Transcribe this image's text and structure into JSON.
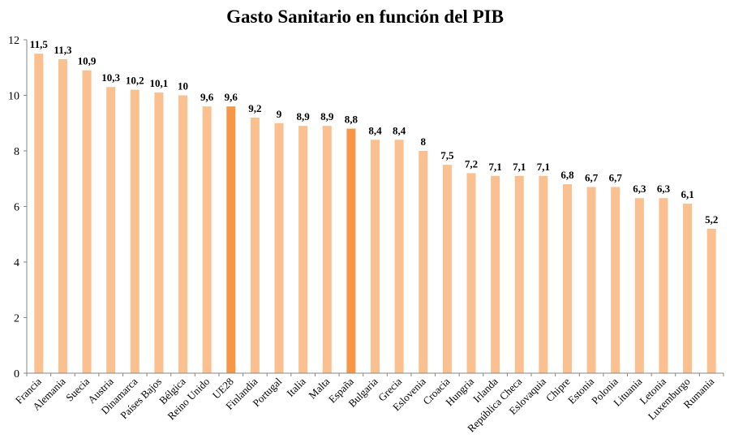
{
  "chart_data": {
    "type": "bar",
    "title": "Gasto Sanitario en función del PIB",
    "xlabel": "",
    "ylabel": "",
    "ylim": [
      0,
      12
    ],
    "yticks": [
      0,
      2,
      4,
      6,
      8,
      10,
      12
    ],
    "grid": false,
    "categories": [
      "Francia",
      "Alemania",
      "Suecia",
      "Austria",
      "Dinamarca",
      "Países Bajos",
      "Bélgica",
      "Reino Unido",
      "UE28",
      "Finlandia",
      "Portugal",
      "Italia",
      "Malta",
      "España",
      "Bulgaria",
      "Grecia",
      "Eslovenia",
      "Croacia",
      "Hungria",
      "Irlanda",
      "República Checa",
      "Eslovaquia",
      "Chipre",
      "Estonia",
      "Polonia",
      "Lituania",
      "Letonia",
      "Luxemburgo",
      "Rumania"
    ],
    "values": [
      11.5,
      11.3,
      10.9,
      10.3,
      10.2,
      10.1,
      10,
      9.6,
      9.6,
      9.2,
      9,
      8.9,
      8.9,
      8.8,
      8.4,
      8.4,
      8,
      7.5,
      7.2,
      7.1,
      7.1,
      7.1,
      6.8,
      6.7,
      6.7,
      6.3,
      6.3,
      6.1,
      5.2
    ],
    "data_labels": [
      "11,5",
      "11,3",
      "10,9",
      "10,3",
      "10,2",
      "10,1",
      "10",
      "9,6",
      "9,6",
      "9,2",
      "9",
      "8,9",
      "8,9",
      "8,8",
      "8,4",
      "8,4",
      "8",
      "7,5",
      "7,2",
      "7,1",
      "7,1",
      "7,1",
      "6,8",
      "6,7",
      "6,7",
      "6,3",
      "6,3",
      "6,1",
      "5,2"
    ],
    "highlighted": [
      "UE28",
      "España"
    ],
    "colors": {
      "bar": "#FAC090",
      "highlight": "#F79646",
      "axis": "#868686"
    }
  }
}
